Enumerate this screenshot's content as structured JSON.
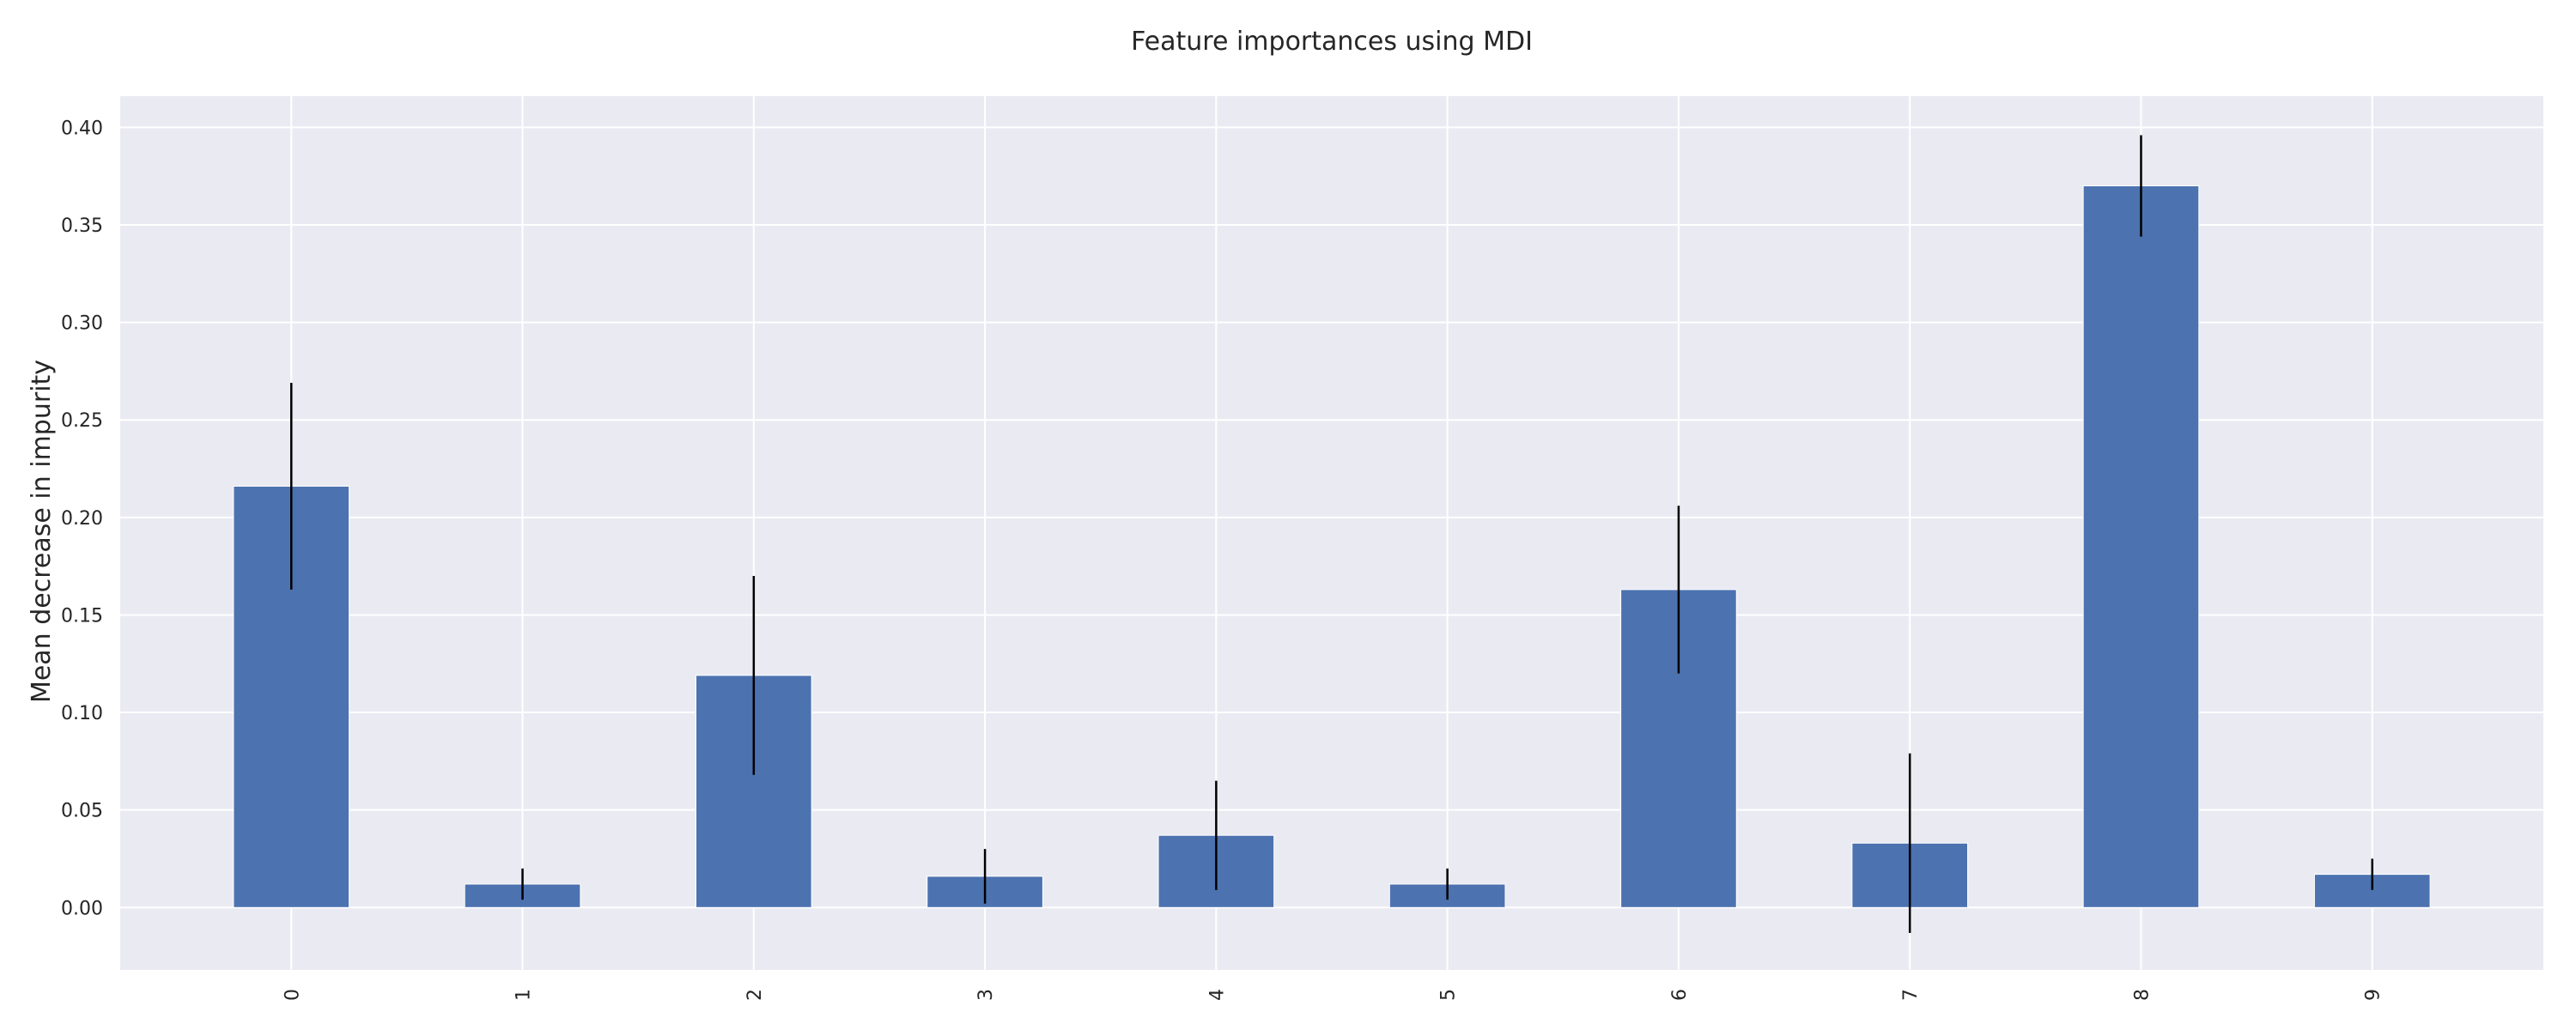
{
  "chart_data": {
    "type": "bar",
    "title": "Feature importances using MDI",
    "xlabel": "",
    "ylabel": "Mean decrease in impurity",
    "categories": [
      "0",
      "1",
      "2",
      "3",
      "4",
      "5",
      "6",
      "7",
      "8",
      "9"
    ],
    "values": [
      0.216,
      0.012,
      0.119,
      0.016,
      0.037,
      0.012,
      0.163,
      0.033,
      0.37,
      0.017
    ],
    "error_bars": [
      0.053,
      0.008,
      0.051,
      0.014,
      0.028,
      0.008,
      0.043,
      0.046,
      0.026,
      0.008
    ],
    "ylim": [
      -0.032,
      0.416
    ],
    "yticks": [
      "0.00",
      "0.05",
      "0.10",
      "0.15",
      "0.20",
      "0.25",
      "0.30",
      "0.35",
      "0.40"
    ],
    "grid": true,
    "legend": "none",
    "colors": {
      "bar": "#4c72b0",
      "error_bar": "#000000",
      "plot_background": "#eaeaf2",
      "grid": "#ffffff",
      "text": "#262626"
    }
  }
}
